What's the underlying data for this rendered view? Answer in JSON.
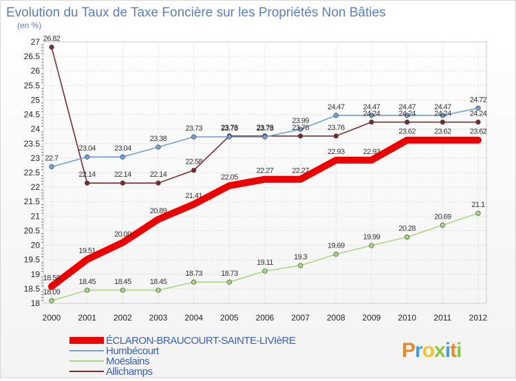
{
  "chart_data": {
    "type": "line",
    "title": "Evolution du Taux de Taxe Foncière sur les Propriétés Non Bâties",
    "unit_label": "(en %)",
    "x": [
      "2000",
      "2001",
      "2002",
      "2003",
      "2004",
      "2005",
      "2006",
      "2007",
      "2008",
      "2009",
      "2010",
      "2011",
      "2012"
    ],
    "ylim": [
      18,
      27
    ],
    "yticks": [
      "18",
      "18.5",
      "19",
      "19.5",
      "20",
      "20.5",
      "21",
      "21.5",
      "22",
      "22.5",
      "23",
      "23.5",
      "24",
      "24.5",
      "25",
      "25.5",
      "26",
      "26.5",
      "27"
    ],
    "grid": true,
    "legend_position": "bottom-left",
    "series": [
      {
        "name": "ÉCLARON-BRAUCOURT-SAINTE-LIVIèRE",
        "color": "#ee0000",
        "values": [
          18.58,
          19.51,
          20.09,
          20.89,
          21.41,
          22.05,
          22.27,
          22.27,
          22.93,
          22.93,
          23.62,
          23.62,
          23.62
        ],
        "labels": [
          "18.58",
          "19.51",
          "20.09",
          "20.89",
          "21.41",
          "22.05",
          "22.27",
          "22.27",
          "22.93",
          "22.93",
          "23.62",
          "23.62",
          "23.62"
        ]
      },
      {
        "name": "Humbécourt",
        "color": "#6fa2d6",
        "values": [
          22.7,
          23.04,
          23.04,
          23.38,
          23.73,
          23.73,
          23.73,
          23.99,
          24.47,
          24.47,
          24.47,
          24.47,
          24.72
        ],
        "labels": [
          "22.7",
          "23.04",
          "23.04",
          "23.38",
          "23.73",
          "23.73",
          "23.73",
          "23.99",
          "24.47",
          "24.47",
          "24.47",
          "24.47",
          "24.72"
        ]
      },
      {
        "name": "Moëslains",
        "color": "#a6d97f",
        "values": [
          18.09,
          18.45,
          18.45,
          18.45,
          18.73,
          18.73,
          19.11,
          19.3,
          19.69,
          19.99,
          20.28,
          20.69,
          21.1
        ],
        "labels": [
          "18.09",
          "18.45",
          "18.45",
          "18.45",
          "18.73",
          "18.73",
          "19.11",
          "19.3",
          "19.69",
          "19.99",
          "20.28",
          "20.69",
          "21.1"
        ]
      },
      {
        "name": "Allichamps",
        "color": "#7a2a2a",
        "values": [
          26.82,
          22.14,
          22.14,
          22.14,
          22.58,
          23.76,
          23.76,
          23.76,
          23.76,
          24.24,
          24.24,
          24.24,
          24.24
        ],
        "labels": [
          "26.82",
          "22.14",
          "22.14",
          "22.14",
          "22.58",
          "23.76",
          "23.76",
          "23.76",
          "23.76",
          "24.24",
          "24.24",
          "24.24",
          "24.24"
        ]
      }
    ]
  },
  "logo": {
    "letters": [
      "P",
      "r",
      "o",
      "x",
      "i",
      "t",
      "i"
    ],
    "colors": [
      "#e58a2a",
      "#3ea0d8",
      "#f2c230",
      "#8cc63f",
      "#3ea0d8",
      "#e58a2a",
      "#8cc63f"
    ]
  }
}
